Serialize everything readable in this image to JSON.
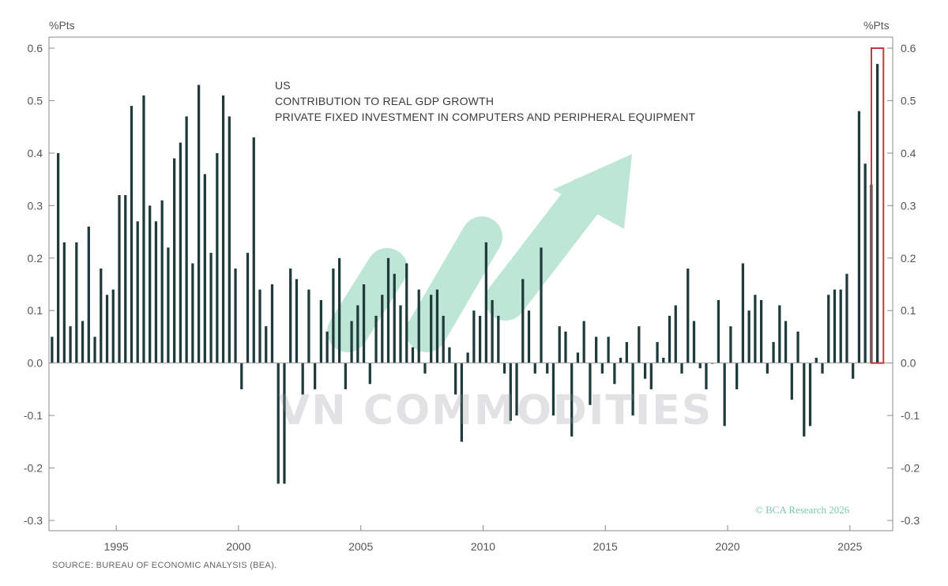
{
  "chart_data": {
    "type": "bar",
    "title_lines": [
      "US",
      "CONTRIBUTION TO REAL GDP GROWTH",
      "PRIVATE FIXED INVESTMENT IN COMPUTERS AND PERIPHERAL EQUIPMENT"
    ],
    "unit_left": "%Pts",
    "unit_right": "%Pts",
    "ylim": [
      -0.3,
      0.6
    ],
    "yticks": [
      -0.3,
      -0.2,
      -0.1,
      0.0,
      0.1,
      0.2,
      0.3,
      0.4,
      0.5,
      0.6
    ],
    "ytick_labels": [
      "-0.3",
      "-0.2",
      "-0.1",
      "0.0",
      "0.1",
      "0.2",
      "0.3",
      "0.4",
      "0.5",
      "0.6"
    ],
    "xlim": [
      1992.25,
      2026.75
    ],
    "xticks": [
      1995,
      2000,
      2005,
      2010,
      2015,
      2020,
      2025
    ],
    "xtick_labels": [
      "1995",
      "2000",
      "2005",
      "2010",
      "2015",
      "2020",
      "2025"
    ],
    "start_year": 1992,
    "start_quarter": 2,
    "bar_color": "#1f3a3b",
    "highlight_color": "#c0393b",
    "highlight_last_n": 1,
    "grid": false,
    "values": [
      0.05,
      0.4,
      0.23,
      0.07,
      0.23,
      0.08,
      0.26,
      0.05,
      0.18,
      0.13,
      0.14,
      0.32,
      0.32,
      0.49,
      0.27,
      0.51,
      0.3,
      0.27,
      0.31,
      0.22,
      0.39,
      0.42,
      0.47,
      0.19,
      0.53,
      0.36,
      0.21,
      0.4,
      0.51,
      0.47,
      0.18,
      -0.05,
      0.21,
      0.43,
      0.14,
      0.07,
      0.15,
      -0.23,
      -0.23,
      0.18,
      0.16,
      -0.06,
      0.14,
      -0.05,
      0.12,
      0.06,
      0.18,
      0.2,
      -0.05,
      0.08,
      0.11,
      0.15,
      -0.04,
      0.09,
      0.13,
      0.2,
      0.17,
      0.11,
      0.19,
      0.03,
      0.14,
      -0.02,
      0.13,
      0.14,
      0.09,
      0.03,
      -0.06,
      -0.15,
      0.02,
      0.1,
      0.09,
      0.23,
      0.12,
      0.09,
      -0.02,
      -0.11,
      -0.1,
      0.16,
      0.1,
      -0.02,
      0.22,
      -0.02,
      -0.1,
      0.07,
      0.06,
      -0.14,
      0.02,
      0.08,
      -0.08,
      0.05,
      -0.02,
      0.05,
      -0.04,
      0.01,
      0.04,
      -0.1,
      0.07,
      -0.03,
      -0.05,
      0.04,
      0.01,
      0.09,
      0.11,
      -0.02,
      0.18,
      0.08,
      -0.01,
      -0.05,
      0.0,
      0.12,
      -0.12,
      0.07,
      -0.05,
      0.19,
      0.1,
      0.13,
      0.12,
      -0.02,
      0.04,
      0.11,
      0.08,
      -0.07,
      0.06,
      -0.14,
      -0.12,
      0.01,
      -0.02,
      0.13,
      0.14,
      0.14,
      0.17,
      -0.03,
      0.48,
      0.38,
      0.34,
      0.57
    ],
    "watermark_text": "VN COMMODITIES",
    "credit": "© BCA Research 2026",
    "source": "SOURCE: BUREAU OF ECONOMIC ANALYSIS (BEA)."
  }
}
